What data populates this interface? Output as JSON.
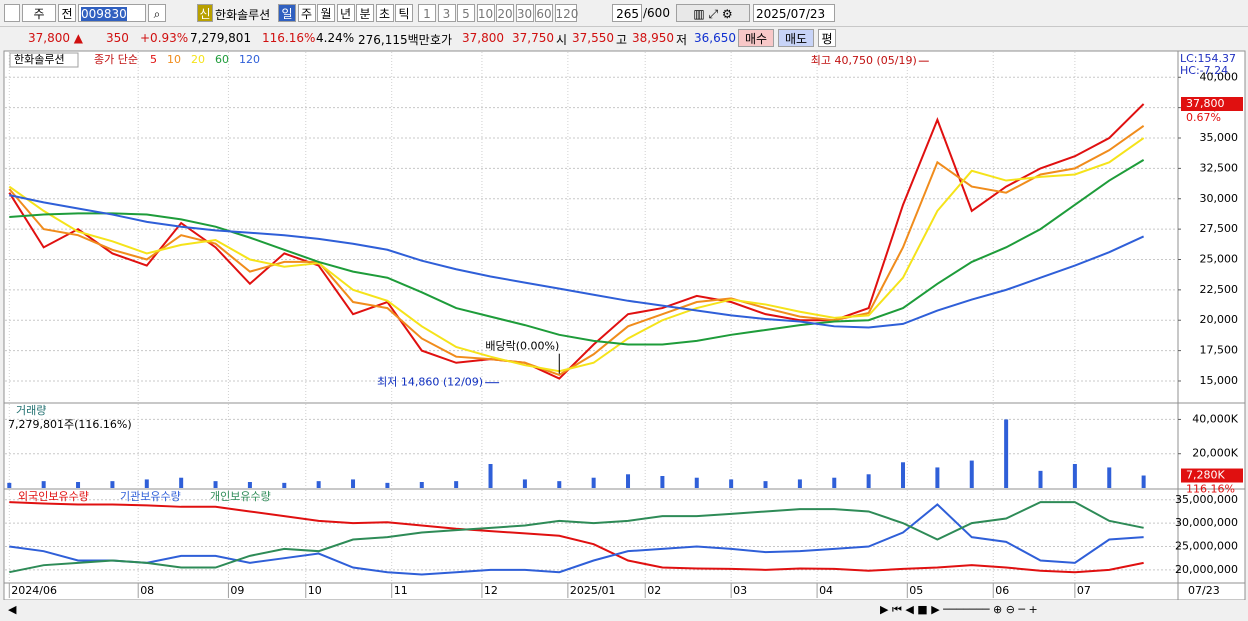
{
  "toolbar": {
    "market": "주",
    "prev": "전",
    "code": "009830",
    "new": "신",
    "name": "한화솔루션",
    "periods": [
      "일",
      "주",
      "월",
      "년",
      "분",
      "초",
      "틱"
    ],
    "intervals": [
      "1",
      "3",
      "5",
      "10",
      "20",
      "30",
      "60",
      "120"
    ],
    "count": "265",
    "max": "/600",
    "date": "2025/07/23"
  },
  "quote": [
    {
      "text": "37,800 ▲",
      "color": "#d01010"
    },
    {
      "text": "350",
      "color": "#d01010"
    },
    {
      "text": "+0.93%",
      "color": "#d01010"
    },
    {
      "text": "7,279,801",
      "color": "#000000"
    },
    {
      "text": "116.16%",
      "color": "#d01010"
    },
    {
      "text": "4.24%",
      "color": "#000000"
    },
    {
      "text": "276,115백만",
      "color": "#000000"
    },
    {
      "text": "호가",
      "color": "#000000"
    },
    {
      "text": "37,800",
      "color": "#d01010"
    },
    {
      "text": "37,750",
      "color": "#d01010"
    },
    {
      "text": "시",
      "color": "#000000"
    },
    {
      "text": "37,550",
      "color": "#d01010"
    },
    {
      "text": "고",
      "color": "#000000"
    },
    {
      "text": "38,950",
      "color": "#d01010"
    },
    {
      "text": "저",
      "color": "#000000"
    },
    {
      "text": "36,650",
      "color": "#1030d0"
    }
  ],
  "buttons": {
    "buy": "매수",
    "sell": "매도",
    "avg": "평"
  },
  "chart_data": [
    {
      "type": "line",
      "title": "한화솔루션",
      "subtitle": "종가 단순",
      "corner_labels": [
        "LC:154.37",
        "HC:-7.24"
      ],
      "x": [
        0,
        8,
        16,
        24,
        32,
        40,
        48,
        56,
        64,
        72,
        80,
        88,
        96,
        104,
        112,
        120,
        128,
        136,
        144,
        152,
        160,
        168,
        176,
        184,
        192,
        200,
        208,
        216,
        224,
        232,
        240,
        248,
        256,
        264
      ],
      "series": [
        {
          "name": "5",
          "color": "#e01010",
          "values": [
            30500,
            26000,
            27500,
            25500,
            24500,
            28000,
            26000,
            23000,
            25500,
            24500,
            20500,
            21500,
            17500,
            16500,
            16800,
            16500,
            15200,
            18000,
            20500,
            21000,
            22000,
            21500,
            20500,
            20000,
            20000,
            21000,
            29500,
            36500,
            29000,
            31000,
            32500,
            33500,
            35000,
            37800
          ]
        },
        {
          "name": "10",
          "color": "#f08c1c",
          "values": [
            30800,
            27500,
            27000,
            25800,
            25000,
            27000,
            26300,
            24000,
            24800,
            24800,
            21500,
            21000,
            18500,
            17000,
            16800,
            16500,
            15500,
            17200,
            19500,
            20500,
            21500,
            21800,
            21000,
            20300,
            20000,
            20600,
            26000,
            33000,
            31000,
            30500,
            32000,
            32500,
            34000,
            36000
          ]
        },
        {
          "name": "20",
          "color": "#f5e31a",
          "values": [
            31000,
            29000,
            27300,
            26500,
            25500,
            26200,
            26600,
            25000,
            24400,
            24700,
            22500,
            21600,
            19500,
            17800,
            17000,
            16300,
            15800,
            16500,
            18500,
            20000,
            21000,
            21700,
            21300,
            20700,
            20200,
            20400,
            23500,
            29000,
            32300,
            31500,
            31800,
            32000,
            33000,
            35000
          ]
        },
        {
          "name": "60",
          "color": "#1e9c3a",
          "values": [
            28500,
            28700,
            28800,
            28800,
            28700,
            28300,
            27700,
            26800,
            25800,
            24800,
            24000,
            23500,
            22300,
            21000,
            20300,
            19600,
            18800,
            18300,
            18000,
            18000,
            18300,
            18800,
            19200,
            19600,
            19900,
            20000,
            21000,
            23000,
            24800,
            26000,
            27500,
            29500,
            31500,
            33200
          ]
        },
        {
          "name": "120",
          "color": "#2f5fd8",
          "values": [
            30300,
            29700,
            29200,
            28700,
            28100,
            27700,
            27400,
            27200,
            27000,
            26700,
            26300,
            25800,
            24900,
            24200,
            23600,
            23100,
            22600,
            22100,
            21600,
            21200,
            20800,
            20400,
            20100,
            19900,
            19500,
            19400,
            19700,
            20800,
            21700,
            22500,
            23500,
            24500,
            25600,
            26900
          ]
        }
      ],
      "ylim": [
        13270,
        42080
      ],
      "yticks": [
        {
          "value": 15000,
          "label": "15,000"
        },
        {
          "value": 17500,
          "label": "17,500"
        },
        {
          "value": 20000,
          "label": "20,000"
        },
        {
          "value": 22500,
          "label": "22,500"
        },
        {
          "value": 25000,
          "label": "25,000"
        },
        {
          "value": 27500,
          "label": "27,500"
        },
        {
          "value": 30000,
          "label": "30,000"
        },
        {
          "value": 32500,
          "label": "32,500"
        },
        {
          "value": 35000,
          "label": "35,000"
        },
        {
          "value": 37500,
          "label": "37,500"
        },
        {
          "value": 40000,
          "label": "40,000"
        }
      ],
      "grid": true,
      "marker": {
        "value": 37800,
        "label": "37,800",
        "note": "0.67%",
        "color": "#e01010"
      },
      "annotations": [
        {
          "text": "최고 40,750 (05/19)",
          "x": 214,
          "y": 40750,
          "color": "#c01010"
        },
        {
          "text": "최저 14,860 (12/09)",
          "x": 114,
          "y": 14860,
          "color": "#1030c0"
        },
        {
          "text": "배당락(0.00%)",
          "x": 128,
          "y": 15600,
          "color": "#000000"
        }
      ]
    },
    {
      "type": "bar",
      "title": "거래량",
      "subtitle": "7,279,801주(116.16%)",
      "x": [
        0,
        8,
        16,
        24,
        32,
        40,
        48,
        56,
        64,
        72,
        80,
        88,
        96,
        104,
        112,
        120,
        128,
        136,
        144,
        152,
        160,
        168,
        176,
        184,
        192,
        200,
        208,
        216,
        224,
        232,
        240,
        248,
        256,
        264
      ],
      "values": [
        3000,
        4000,
        3500,
        4000,
        5000,
        6000,
        4000,
        3500,
        3000,
        4000,
        5000,
        3000,
        3500,
        4000,
        14000,
        5000,
        4000,
        6000,
        8000,
        7000,
        6000,
        5000,
        4000,
        5000,
        6000,
        8000,
        15000,
        12000,
        16000,
        40000,
        10000,
        14000,
        12000,
        7280
      ],
      "color": "#2f5fd8",
      "ylim": [
        0,
        49000
      ],
      "yticks": [
        {
          "value": 20000,
          "label": "20,000K"
        },
        {
          "value": 40000,
          "label": "40,000K"
        }
      ],
      "grid": true,
      "marker": {
        "value": 7280,
        "label": "7,280K",
        "note": "116.16%",
        "color": "#e01010"
      }
    },
    {
      "type": "line",
      "x": [
        0,
        8,
        16,
        24,
        32,
        40,
        48,
        56,
        64,
        72,
        80,
        88,
        96,
        104,
        112,
        120,
        128,
        136,
        144,
        152,
        160,
        168,
        176,
        184,
        192,
        200,
        208,
        216,
        224,
        232,
        240,
        248,
        256,
        264
      ],
      "series": [
        {
          "name": "외국인보유수량",
          "color": "#e01010",
          "values": [
            34500000,
            34200000,
            34000000,
            34000000,
            33800000,
            33500000,
            33500000,
            32500000,
            31500000,
            30500000,
            30000000,
            30200000,
            29500000,
            28800000,
            28300000,
            27800000,
            27300000,
            25500000,
            22000000,
            20500000,
            20300000,
            20200000,
            20000000,
            20300000,
            20200000,
            19800000,
            20200000,
            20500000,
            21000000,
            20500000,
            19800000,
            19500000,
            20000000,
            21500000
          ]
        },
        {
          "name": "기관보유수량",
          "color": "#2f5fd8",
          "values": [
            25000000,
            24000000,
            22000000,
            22000000,
            21500000,
            23000000,
            23000000,
            21500000,
            22500000,
            23500000,
            20500000,
            19500000,
            19000000,
            19500000,
            20000000,
            20000000,
            19500000,
            22000000,
            24000000,
            24500000,
            25000000,
            24500000,
            23800000,
            24000000,
            24500000,
            25000000,
            28000000,
            34000000,
            27000000,
            26000000,
            22000000,
            21500000,
            26500000,
            27000000
          ]
        },
        {
          "name": "개인보유수량",
          "color": "#2e8b57",
          "values": [
            19500000,
            21000000,
            21500000,
            22000000,
            21500000,
            20500000,
            20500000,
            23000000,
            24500000,
            24000000,
            26500000,
            27000000,
            28000000,
            28500000,
            29000000,
            29500000,
            30500000,
            30000000,
            30500000,
            31500000,
            31500000,
            32000000,
            32500000,
            33000000,
            33000000,
            32500000,
            30000000,
            26500000,
            30000000,
            31000000,
            34500000,
            34500000,
            30500000,
            29000000
          ]
        }
      ],
      "ylim": [
        17400000,
        37100000
      ],
      "yticks": [
        {
          "value": 20000000,
          "label": "20,000,000"
        },
        {
          "value": 25000000,
          "label": "25,000,000"
        },
        {
          "value": 30000000,
          "label": "30,000,000"
        },
        {
          "value": 35000000,
          "label": "35,000,000"
        }
      ],
      "grid": true,
      "xlim": [
        -1,
        272
      ],
      "xticks": [
        {
          "value": 0,
          "label": "2024/06"
        },
        {
          "value": 30,
          "label": "08"
        },
        {
          "value": 51,
          "label": "09"
        },
        {
          "value": 69,
          "label": "10"
        },
        {
          "value": 89,
          "label": "11"
        },
        {
          "value": 110,
          "label": "12"
        },
        {
          "value": 130,
          "label": "2025/01"
        },
        {
          "value": 148,
          "label": "02"
        },
        {
          "value": 168,
          "label": "03"
        },
        {
          "value": 188,
          "label": "04"
        },
        {
          "value": 209,
          "label": "05"
        },
        {
          "value": 229,
          "label": "06"
        },
        {
          "value": 248,
          "label": "07"
        }
      ],
      "x_end_label": "07/23"
    }
  ]
}
